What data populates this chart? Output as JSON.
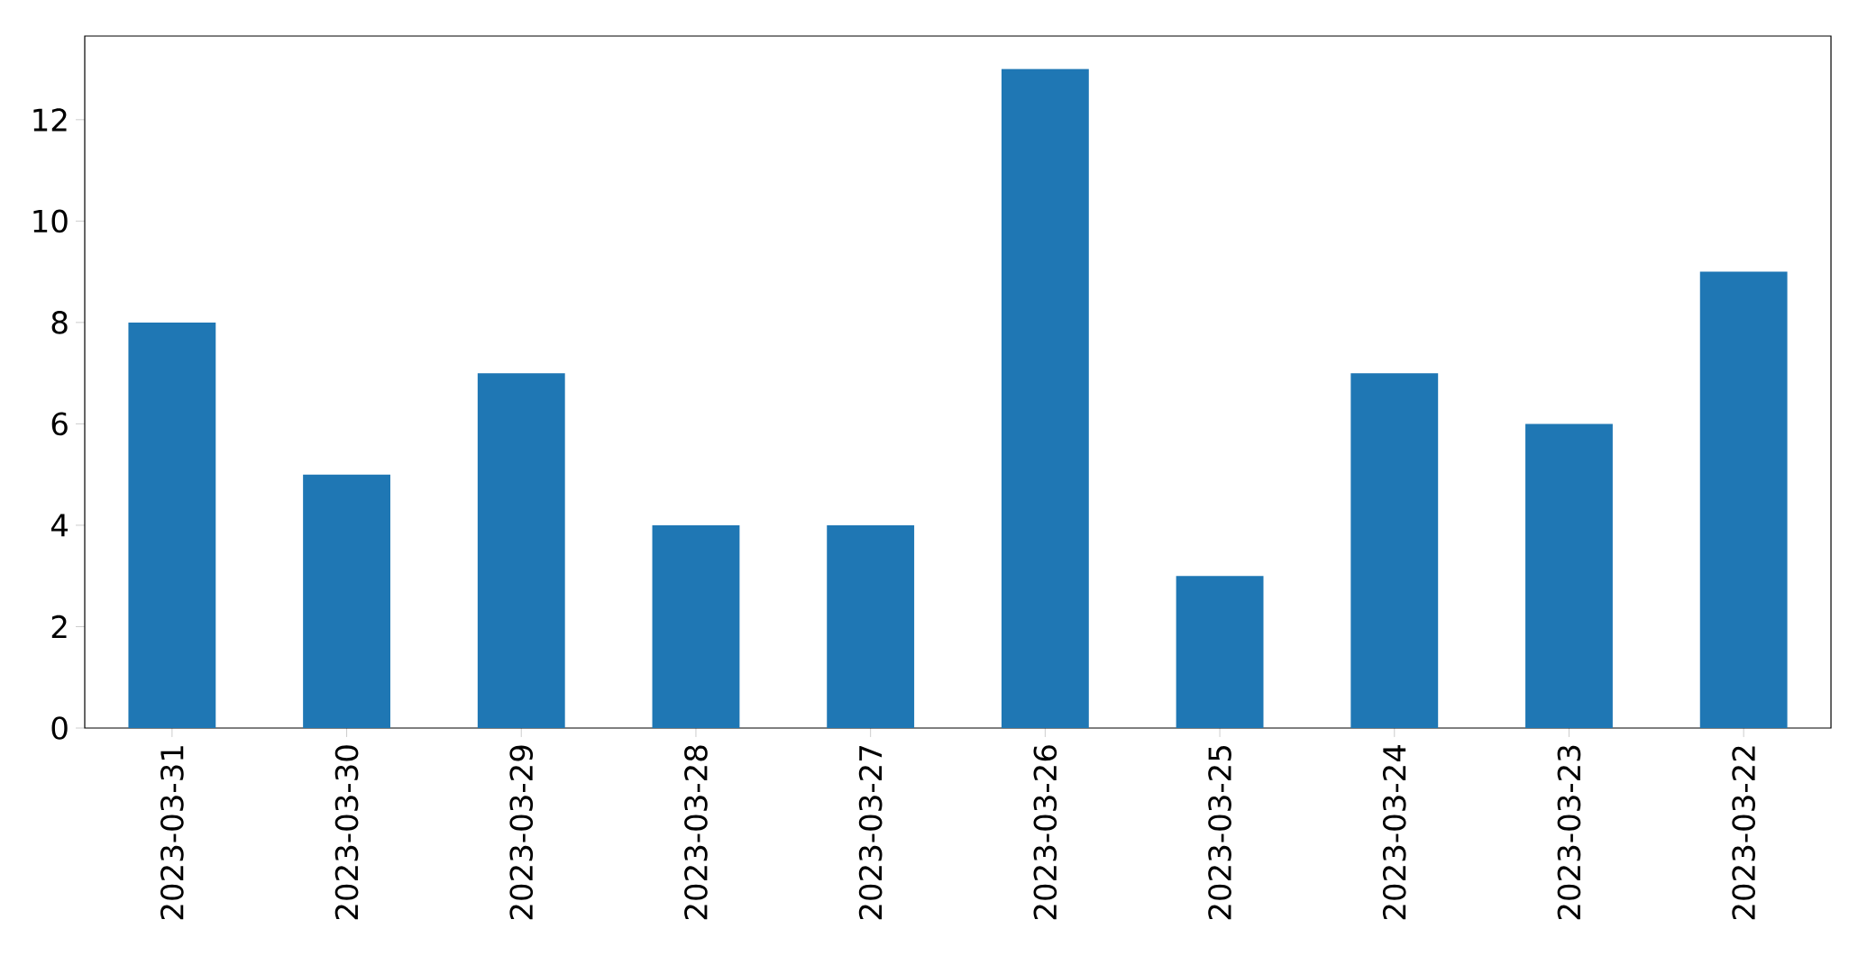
{
  "chart_data": {
    "type": "bar",
    "categories": [
      "2023-03-31",
      "2023-03-30",
      "2023-03-29",
      "2023-03-28",
      "2023-03-27",
      "2023-03-26",
      "2023-03-25",
      "2023-03-24",
      "2023-03-23",
      "2023-03-22"
    ],
    "values": [
      8,
      5,
      7,
      4,
      4,
      13,
      3,
      7,
      6,
      9
    ],
    "color": "#1f77b4",
    "ylim": [
      0,
      13.65
    ],
    "yticks": [
      0,
      2,
      4,
      6,
      8,
      10,
      12
    ]
  }
}
